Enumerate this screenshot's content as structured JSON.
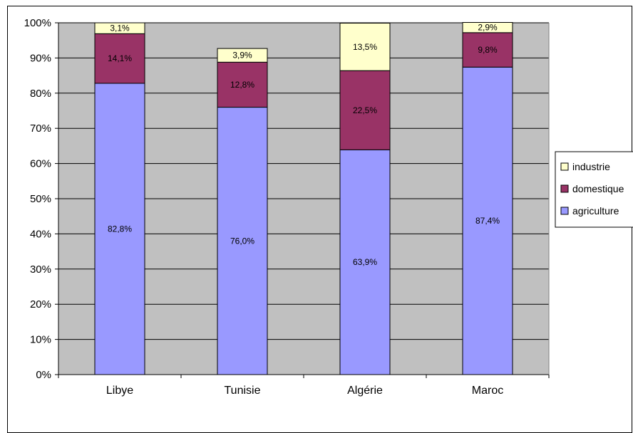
{
  "chart_data": {
    "type": "bar",
    "stacked": true,
    "categories": [
      "Libye",
      "Tunisie",
      "Algérie",
      "Maroc"
    ],
    "series": [
      {
        "name": "agriculture",
        "values": [
          82.8,
          76.0,
          63.9,
          87.4
        ],
        "labels": [
          "82,8%",
          "76,0%",
          "63,9%",
          "87,4%"
        ],
        "color": "#9999ff"
      },
      {
        "name": "domestique",
        "values": [
          14.1,
          12.8,
          22.5,
          9.8
        ],
        "labels": [
          "14,1%",
          "12,8%",
          "22,5%",
          "9,8%"
        ],
        "color": "#993366"
      },
      {
        "name": "industrie",
        "values": [
          3.1,
          3.9,
          13.5,
          2.9
        ],
        "labels": [
          "3,1%",
          "3,9%",
          "13,5%",
          "2,9%"
        ],
        "color": "#ffffcc"
      }
    ],
    "ylim": [
      0,
      100
    ],
    "yticks": [
      "0%",
      "10%",
      "20%",
      "30%",
      "40%",
      "50%",
      "60%",
      "70%",
      "80%",
      "90%",
      "100%"
    ],
    "xlabel": "",
    "ylabel": "",
    "title": "",
    "grid": true,
    "plot_background": "#c0c0c0",
    "legend_position": "right",
    "legend_order": [
      "industrie",
      "domestique",
      "agriculture"
    ]
  }
}
